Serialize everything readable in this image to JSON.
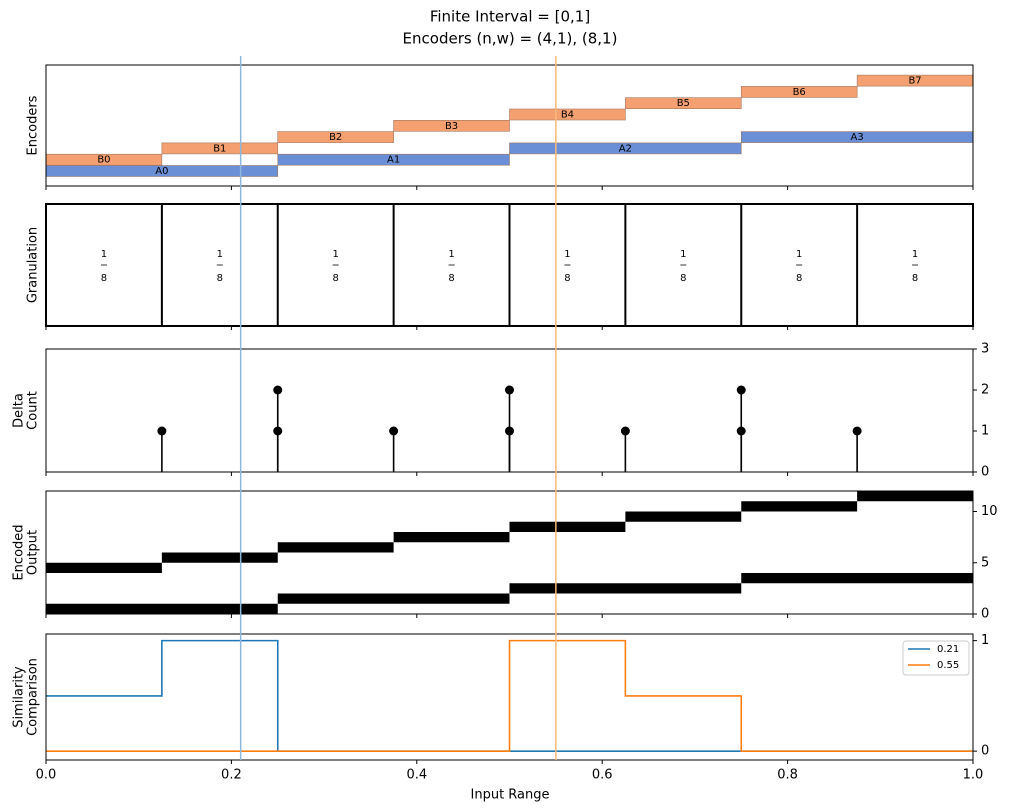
{
  "figure": {
    "title": [
      "Finite Interval = [0,1]",
      "Encoders (n,w) = (4,1), (8,1)"
    ],
    "xlabel": "Input Range",
    "xlim": [
      0,
      1
    ],
    "xticks": [
      {
        "value": 0,
        "label": "0.0"
      },
      0.2,
      0.4,
      0.6,
      0.8,
      {
        "value": 1,
        "label": "1.0"
      }
    ],
    "markers": [
      {
        "value": 0.21,
        "color": "#8bb8dc"
      },
      {
        "value": 0.55,
        "color": "#fbb877"
      }
    ]
  },
  "chart_data": [
    {
      "type": "interval",
      "ylabel": [
        "Encoders"
      ],
      "series": [
        {
          "color": "#6b8fd6",
          "labels": [
            "A0",
            "A1",
            "A2",
            "A3"
          ],
          "starts": [
            0,
            0.25,
            0.5,
            0.75
          ],
          "ends": [
            0.25,
            0.5,
            0.75,
            1
          ]
        },
        {
          "color": "#f4a070",
          "labels": [
            "B0",
            "B1",
            "B2",
            "B3",
            "B4",
            "B5",
            "B6",
            "B7"
          ],
          "starts": [
            0,
            0.125,
            0.25,
            0.375,
            0.5,
            0.625,
            0.75,
            0.875
          ],
          "ends": [
            0.125,
            0.25,
            0.375,
            0.5,
            0.625,
            0.75,
            0.875,
            1
          ]
        }
      ]
    },
    {
      "type": "granulation",
      "ylabel": [
        "Granulation"
      ],
      "edges": [
        0,
        0.125,
        0.25,
        0.375,
        0.5,
        0.625,
        0.75,
        0.875,
        1
      ],
      "fractions": [
        [
          1,
          8
        ],
        [
          1,
          8
        ],
        [
          1,
          8
        ],
        [
          1,
          8
        ],
        [
          1,
          8
        ],
        [
          1,
          8
        ],
        [
          1,
          8
        ],
        [
          1,
          8
        ]
      ]
    },
    {
      "type": "stem",
      "ylabel": [
        "Delta",
        "Count"
      ],
      "ylim": [
        0,
        3
      ],
      "yticks": [
        0,
        1,
        2,
        3
      ],
      "color": "#000000",
      "series": [
        {
          "x": [
            0.125,
            0.25,
            0.375,
            0.5,
            0.625,
            0.75,
            0.875
          ],
          "values": [
            1,
            1,
            1,
            1,
            1,
            1,
            1
          ]
        },
        {
          "x": [
            0.25,
            0.5,
            0.75
          ],
          "values": [
            2,
            2,
            2
          ]
        }
      ]
    },
    {
      "type": "segments",
      "ylabel": [
        "Encoded",
        "Output"
      ],
      "ylim": [
        0,
        12
      ],
      "yticks": [
        0,
        5,
        10
      ],
      "color": "#000000",
      "values": [
        0,
        1,
        2,
        3,
        4,
        5,
        6,
        7,
        8,
        9,
        10,
        11
      ],
      "starts": [
        0,
        0.25,
        0.5,
        0.75,
        0,
        0.125,
        0.25,
        0.375,
        0.5,
        0.625,
        0.75,
        0.875
      ],
      "ends": [
        0.25,
        0.5,
        0.75,
        1,
        0.125,
        0.25,
        0.375,
        0.5,
        0.625,
        0.75,
        0.875,
        1
      ]
    },
    {
      "type": "line",
      "ylabel": [
        "Similarity",
        "Comparison"
      ],
      "ylim": [
        -0.08,
        1.06
      ],
      "yticks": [
        0,
        1
      ],
      "legend": "upper right",
      "series": [
        {
          "name": "0.21",
          "color": "#1f77b4",
          "x": [
            0,
            0.125,
            0.125,
            0.25,
            0.25,
            1
          ],
          "values": [
            0.5,
            0.5,
            1,
            1,
            0,
            0
          ]
        },
        {
          "name": "0.55",
          "color": "#ff7f0e",
          "x": [
            0,
            0.5,
            0.5,
            0.625,
            0.625,
            0.75,
            0.75,
            1
          ],
          "values": [
            0,
            0,
            1,
            1,
            0.5,
            0.5,
            0,
            0
          ]
        }
      ]
    }
  ]
}
